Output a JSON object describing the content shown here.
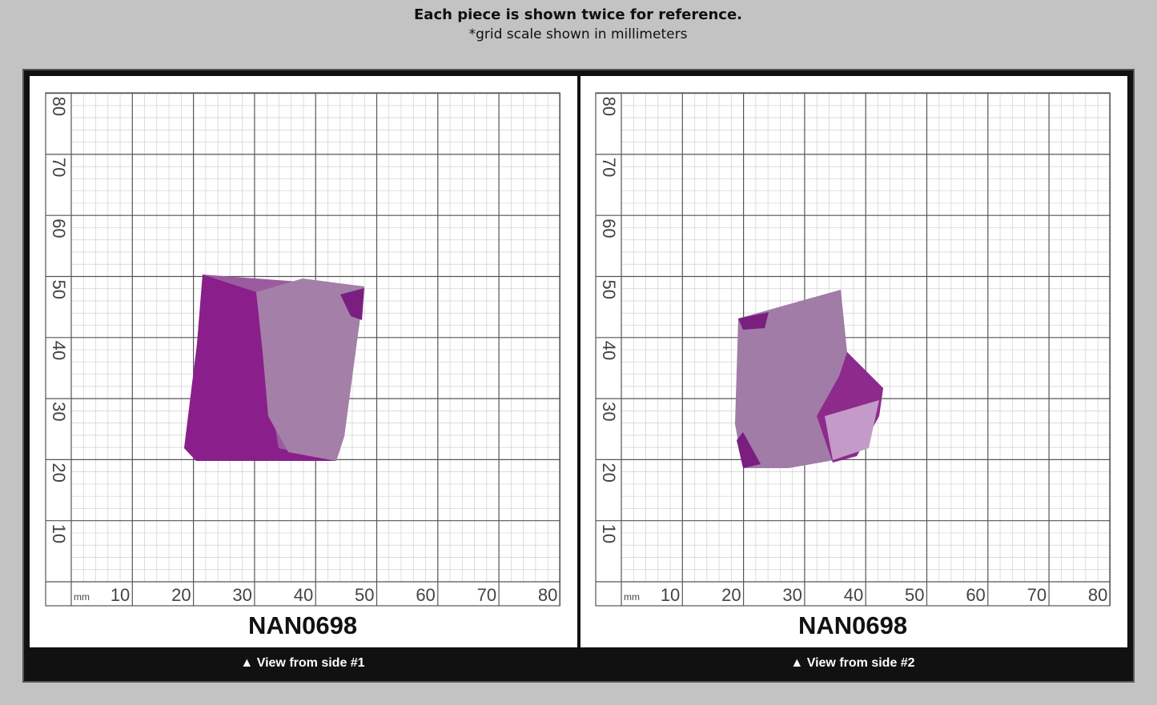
{
  "header": {
    "title": "Each piece is shown twice for reference.",
    "subtitle": "*grid scale shown in millimeters"
  },
  "grid": {
    "unit": "mm",
    "x_labels": [
      "10",
      "20",
      "30",
      "40",
      "50",
      "60",
      "70",
      "80"
    ],
    "y_labels": [
      "10",
      "20",
      "30",
      "40",
      "50",
      "60",
      "70",
      "80"
    ]
  },
  "panels": [
    {
      "code": "NAN0698",
      "caption": "▲ View from side #1"
    },
    {
      "code": "NAN0698",
      "caption": "▲ View from side #2"
    }
  ]
}
